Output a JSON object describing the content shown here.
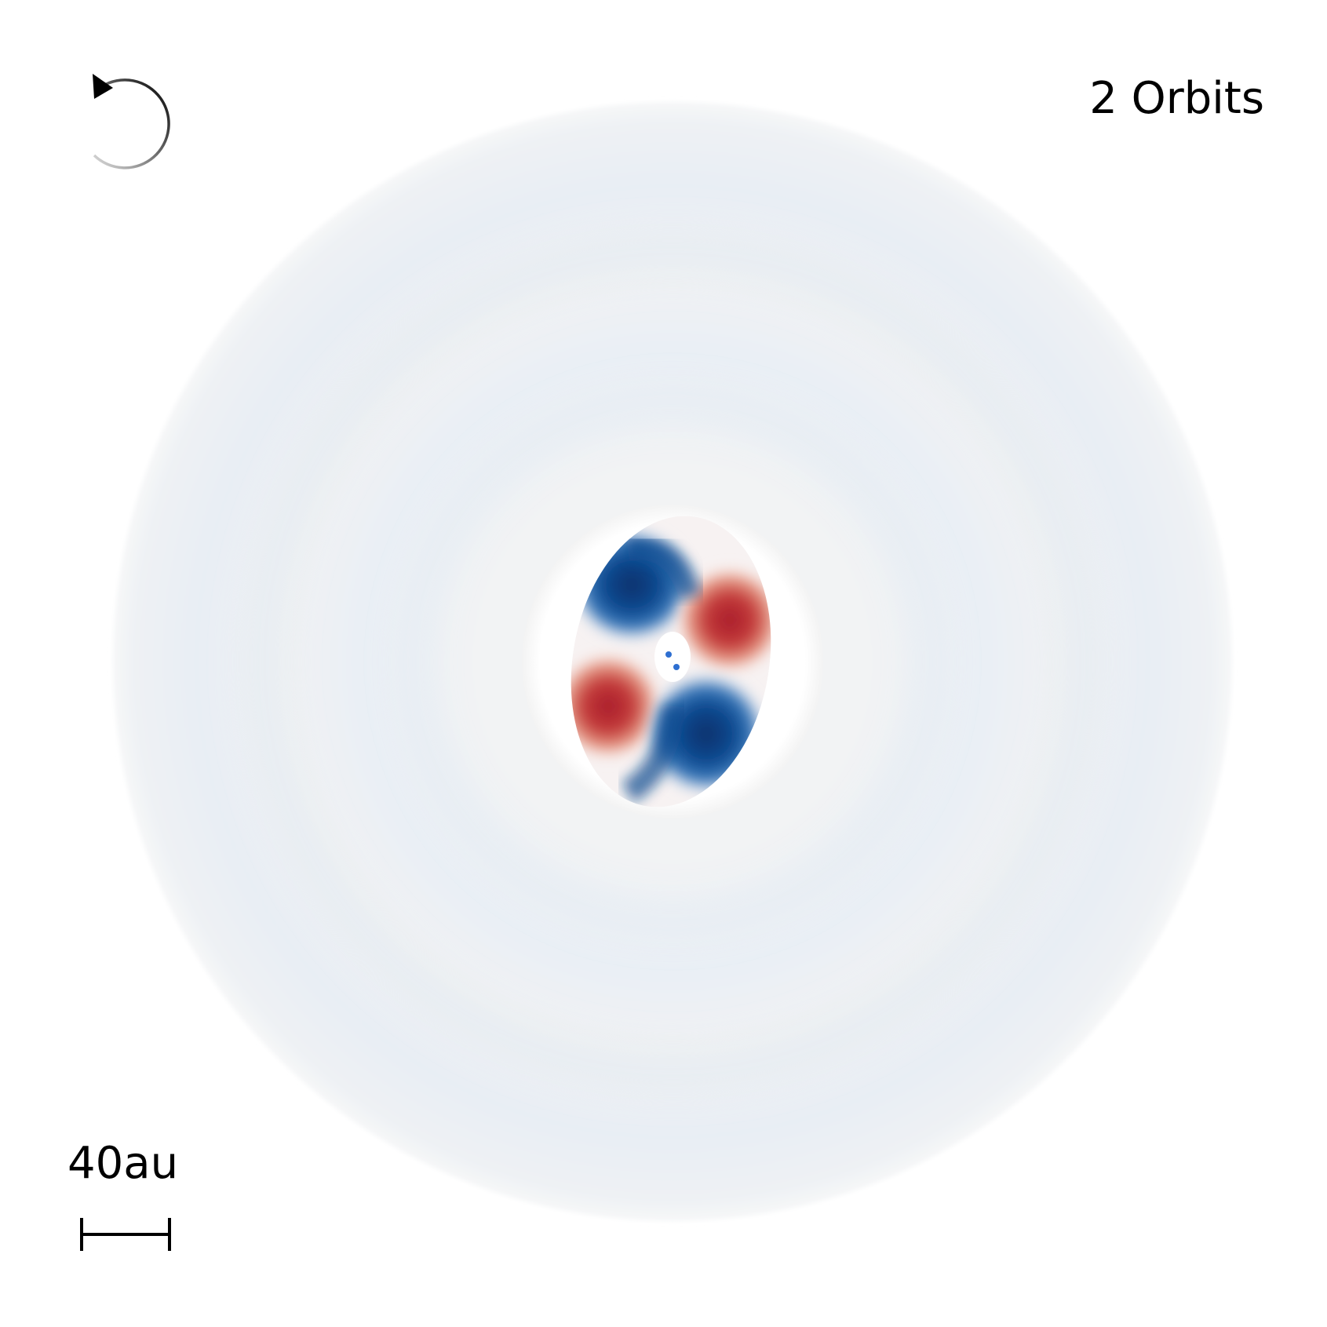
{
  "annotations": {
    "orbit_label": "2 Orbits",
    "scale_label": "40au"
  },
  "icons": {
    "rotation": "counterclockwise-rotation-arrow-icon",
    "scale": "scale-bar-icon"
  },
  "colors": {
    "background": "#ffffff",
    "disk_base": "#eef2f5",
    "positive": "#b2182b",
    "negative": "#08306b",
    "star": "#2e6fd1"
  }
}
